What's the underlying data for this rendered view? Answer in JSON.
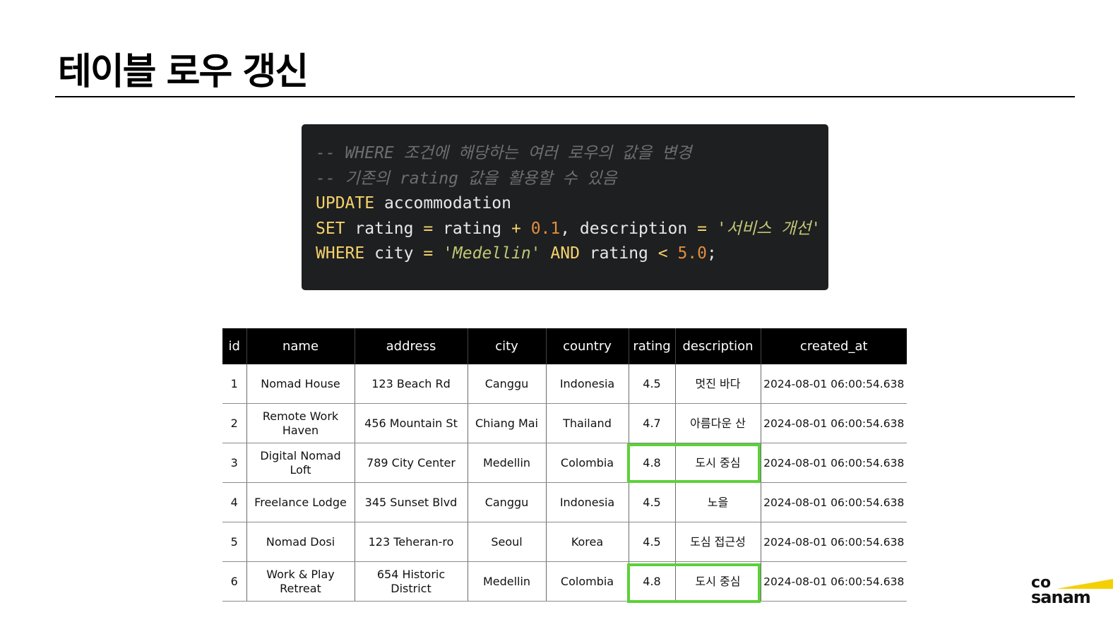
{
  "slide": {
    "title": "테이블 로우 갱신"
  },
  "code": {
    "lines": [
      [
        {
          "t": "-- WHERE 조건에 해당하는 여러 로우의 값을 변경",
          "c": "cm"
        }
      ],
      [
        {
          "t": "-- 기존의 rating 값을 활용할 수 있음",
          "c": "cm"
        }
      ],
      [
        {
          "t": "UPDATE",
          "c": "kw"
        },
        {
          "t": " accommodation",
          "c": "op"
        }
      ],
      [
        {
          "t": "SET",
          "c": "kw"
        },
        {
          "t": " rating ",
          "c": "op"
        },
        {
          "t": "=",
          "c": "kw"
        },
        {
          "t": " rating ",
          "c": "op"
        },
        {
          "t": "+",
          "c": "kw"
        },
        {
          "t": " ",
          "c": "op"
        },
        {
          "t": "0.1",
          "c": "num"
        },
        {
          "t": ", description ",
          "c": "op"
        },
        {
          "t": "=",
          "c": "kw"
        },
        {
          "t": " ",
          "c": "op"
        },
        {
          "t": "'서비스 개선'",
          "c": "str"
        }
      ],
      [
        {
          "t": "WHERE",
          "c": "kw"
        },
        {
          "t": " city ",
          "c": "op"
        },
        {
          "t": "=",
          "c": "kw"
        },
        {
          "t": " ",
          "c": "op"
        },
        {
          "t": "'Medellin'",
          "c": "str"
        },
        {
          "t": " ",
          "c": "op"
        },
        {
          "t": "AND",
          "c": "kw"
        },
        {
          "t": " rating ",
          "c": "op"
        },
        {
          "t": "<",
          "c": "kw"
        },
        {
          "t": " ",
          "c": "op"
        },
        {
          "t": "5.0",
          "c": "num"
        },
        {
          "t": ";",
          "c": "op"
        }
      ]
    ]
  },
  "table": {
    "columns": [
      "id",
      "name",
      "address",
      "city",
      "country",
      "rating",
      "description",
      "created_at"
    ],
    "rows": [
      [
        "1",
        "Nomad House",
        "123 Beach Rd",
        "Canggu",
        "Indonesia",
        "4.5",
        "멋진 바다",
        "2024-08-01 06:00:54.638"
      ],
      [
        "2",
        "Remote Work Haven",
        "456 Mountain St",
        "Chiang Mai",
        "Thailand",
        "4.7",
        "아름다운 산",
        "2024-08-01 06:00:54.638"
      ],
      [
        "3",
        "Digital Nomad Loft",
        "789 City Center",
        "Medellin",
        "Colombia",
        "4.8",
        "도시 중심",
        "2024-08-01 06:00:54.638"
      ],
      [
        "4",
        "Freelance Lodge",
        "345 Sunset Blvd",
        "Canggu",
        "Indonesia",
        "4.5",
        "노을",
        "2024-08-01 06:00:54.638"
      ],
      [
        "5",
        "Nomad Dosi",
        "123 Teheran-ro",
        "Seoul",
        "Korea",
        "4.5",
        "도심 접근성",
        "2024-08-01 06:00:54.638"
      ],
      [
        "6",
        "Work & Play Retreat",
        "654 Historic District",
        "Medellin",
        "Colombia",
        "4.8",
        "도시 중심",
        "2024-08-01 06:00:54.638"
      ]
    ],
    "highlighted_row_ids": [
      "3",
      "6"
    ],
    "highlight_color": "#5cd13a"
  },
  "logo": {
    "line1": "co",
    "line2": "sanam",
    "accent_color": "#f5d000"
  }
}
